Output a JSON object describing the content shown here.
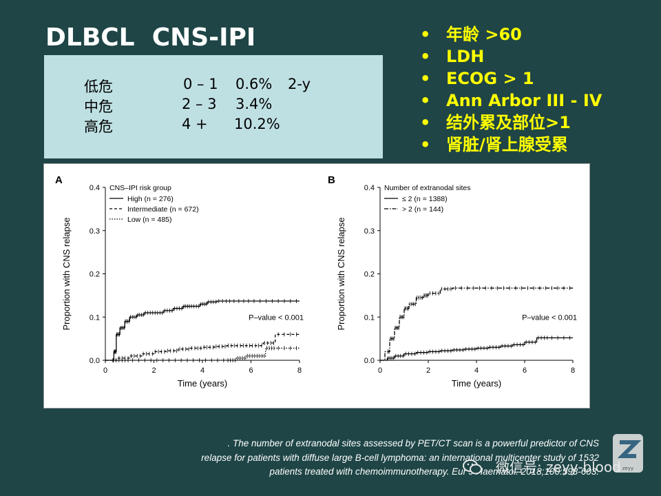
{
  "slide": {
    "title": "DLBCL  CNS-IPI",
    "risk_table": [
      {
        "label": "低危",
        "score": "0 – 1",
        "rate": "0.6%",
        "horizon": "2-y"
      },
      {
        "label": "中危",
        "score": "2 – 3",
        "rate": "3.4%",
        "horizon": ""
      },
      {
        "label": "高危",
        "score": "4 +",
        "rate": "10.2%",
        "horizon": ""
      }
    ],
    "risk_factors": [
      "年龄 >60",
      "LDH",
      "ECOG > 1",
      "Ann Arbor III - IV",
      "结外累及部位>1",
      "肾脏/肾上腺受累"
    ],
    "citation_lines": [
      ". The number of extranodal sites assessed by PET/CT scan is a powerful predictor of CNS",
      "relapse for patients with diffuse large B-cell lymphoma: an international multicenter study of 1532",
      "patients treated with chemoimmunotherapy. Eur J Haematol. 2018;100:593-603."
    ],
    "watermark": "微信号: zeyy-blood",
    "logo_text": "Z",
    "logo_sub": "zeyy"
  },
  "colors": {
    "background": "#1f4546",
    "title": "#ffffff",
    "bullet": "#ffff00",
    "box": "#bfe0e3"
  },
  "chart_data": [
    {
      "type": "line",
      "panel": "A",
      "title": "",
      "xlabel": "Time (years)",
      "ylabel": "Proportion with CNS relapse",
      "xlim": [
        0,
        8
      ],
      "ylim": [
        0,
        0.4
      ],
      "xticks": [
        0,
        2,
        4,
        6,
        8
      ],
      "yticks": [
        0.0,
        0.1,
        0.2,
        0.3,
        0.4
      ],
      "ytick_labels": [
        "0.0",
        "0.1",
        "0.2",
        "0.3",
        "0.4"
      ],
      "legend_title": "CNS–IPI risk group",
      "annotation": "P–value < 0.001",
      "series": [
        {
          "name": "High (n = 276)",
          "style": "solid",
          "x": [
            0,
            0.25,
            0.35,
            0.45,
            0.6,
            0.8,
            1.0,
            1.3,
            1.6,
            2.0,
            2.4,
            2.8,
            3.2,
            3.5,
            3.9,
            4.2,
            4.6,
            5.2,
            6.0,
            7.0,
            8.0
          ],
          "y": [
            0,
            0.0,
            0.02,
            0.06,
            0.075,
            0.09,
            0.1,
            0.105,
            0.11,
            0.11,
            0.115,
            0.12,
            0.125,
            0.125,
            0.13,
            0.135,
            0.137,
            0.137,
            0.137,
            0.137,
            0.137
          ]
        },
        {
          "name": "Intermediate (n = 672)",
          "style": "dashed",
          "x": [
            0,
            0.5,
            1.0,
            1.5,
            2.0,
            2.5,
            3.0,
            3.5,
            4.0,
            4.5,
            5.0,
            5.5,
            6.0,
            6.5,
            7.0,
            8.0
          ],
          "y": [
            0,
            0.005,
            0.01,
            0.015,
            0.02,
            0.022,
            0.026,
            0.028,
            0.03,
            0.032,
            0.034,
            0.034,
            0.034,
            0.04,
            0.06,
            0.06
          ]
        },
        {
          "name": "Low (n = 485)",
          "style": "dotted",
          "x": [
            0,
            0.5,
            1.0,
            2.0,
            3.0,
            4.0,
            5.0,
            5.4,
            5.8,
            6.2,
            6.6,
            7.0,
            8.0
          ],
          "y": [
            0,
            0.0,
            0.0,
            0.0,
            0.0,
            0.0,
            0.0,
            0.005,
            0.01,
            0.01,
            0.028,
            0.028,
            0.028
          ]
        }
      ]
    },
    {
      "type": "line",
      "panel": "B",
      "title": "",
      "xlabel": "Time (years)",
      "ylabel": "Proportion with CNS relapse",
      "xlim": [
        0,
        8
      ],
      "ylim": [
        0,
        0.4
      ],
      "xticks": [
        0,
        2,
        4,
        6,
        8
      ],
      "yticks": [
        0.0,
        0.1,
        0.2,
        0.3,
        0.4
      ],
      "ytick_labels": [
        "0.0",
        "0.1",
        "0.2",
        "0.3",
        "0.4"
      ],
      "legend_title": "Number of extranodal sites",
      "annotation": "P–value < 0.001",
      "series": [
        {
          "name": "≤ 2 (n = 1388)",
          "style": "solid",
          "x": [
            0,
            0.3,
            0.6,
            1.0,
            1.5,
            2.0,
            2.5,
            3.0,
            3.5,
            4.0,
            4.5,
            5.0,
            5.5,
            6.0,
            6.5,
            7.0,
            8.0
          ],
          "y": [
            0,
            0.005,
            0.01,
            0.015,
            0.018,
            0.02,
            0.022,
            0.024,
            0.026,
            0.028,
            0.03,
            0.033,
            0.036,
            0.042,
            0.052,
            0.052,
            0.052
          ]
        },
        {
          "name": "> 2 (n = 144)",
          "style": "dashdot",
          "x": [
            0,
            0.2,
            0.4,
            0.6,
            0.8,
            1.0,
            1.2,
            1.5,
            1.8,
            2.0,
            2.5,
            3.0,
            4.0,
            5.0,
            6.0,
            7.0,
            8.0
          ],
          "y": [
            0,
            0.02,
            0.05,
            0.075,
            0.1,
            0.12,
            0.13,
            0.145,
            0.15,
            0.155,
            0.165,
            0.167,
            0.167,
            0.167,
            0.167,
            0.167,
            0.167
          ]
        }
      ]
    }
  ]
}
